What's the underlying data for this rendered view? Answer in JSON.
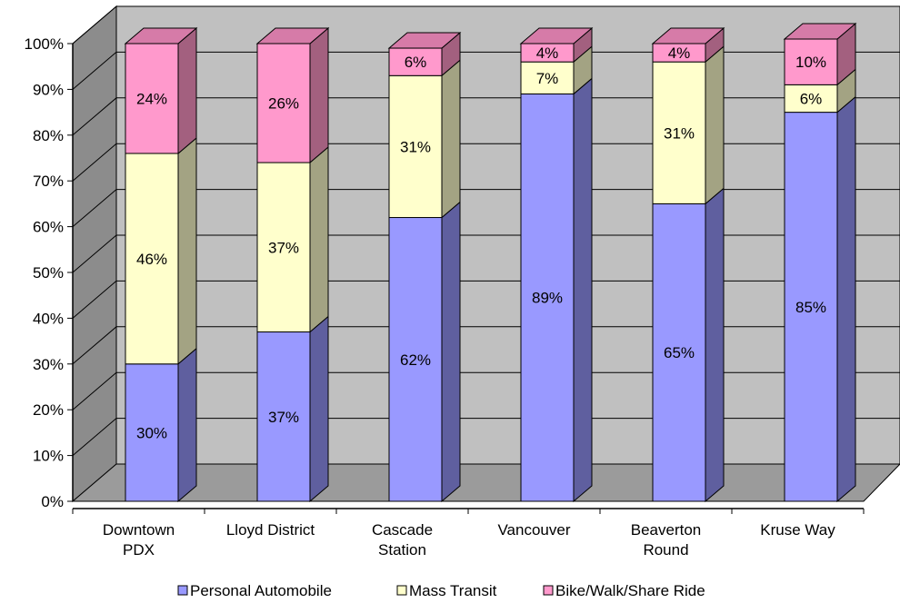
{
  "chart_data": {
    "type": "bar",
    "stacked": "percent",
    "three_d": true,
    "categories": [
      [
        "Downtown",
        "PDX"
      ],
      [
        "Lloyd District"
      ],
      [
        "Cascade",
        "Station"
      ],
      [
        "Vancouver"
      ],
      [
        "Beaverton",
        "Round"
      ],
      [
        "Kruse Way"
      ]
    ],
    "series": [
      {
        "name": "Personal Automobile",
        "values": [
          30,
          37,
          62,
          89,
          65,
          85
        ],
        "labels": [
          "30%",
          "37%",
          "62%",
          "89%",
          "65%",
          "85%"
        ]
      },
      {
        "name": "Mass Transit",
        "values": [
          46,
          37,
          31,
          7,
          31,
          6
        ],
        "labels": [
          "46%",
          "37%",
          "31%",
          "7%",
          "31%",
          "6%"
        ]
      },
      {
        "name": "Bike/Walk/Share Ride",
        "values": [
          24,
          26,
          6,
          4,
          4,
          10
        ],
        "labels": [
          "24%",
          "26%",
          "6%",
          "4%",
          "4%",
          "10%"
        ]
      }
    ],
    "colors": {
      "series_front": [
        "#9999ff",
        "#ffffcc",
        "#ff99cc"
      ],
      "series_side": [
        "#5f5f9f",
        "#a3a383",
        "#a3607f"
      ],
      "series_top": [
        "#7c7cd0",
        "#d9d9a8",
        "#d67ba8"
      ],
      "back_wall": "#c0c0c0",
      "side_wall": "#8c8c8c",
      "floor": "#9b9b9b"
    },
    "y_ticks": [
      "0%",
      "10%",
      "20%",
      "30%",
      "40%",
      "50%",
      "60%",
      "70%",
      "80%",
      "90%",
      "100%"
    ],
    "ylim": [
      0,
      100
    ],
    "grid": true,
    "legend": {
      "position": "bottom",
      "entries": [
        "Personal Automobile",
        "Mass Transit",
        "Bike/Walk/Share Ride"
      ]
    }
  }
}
